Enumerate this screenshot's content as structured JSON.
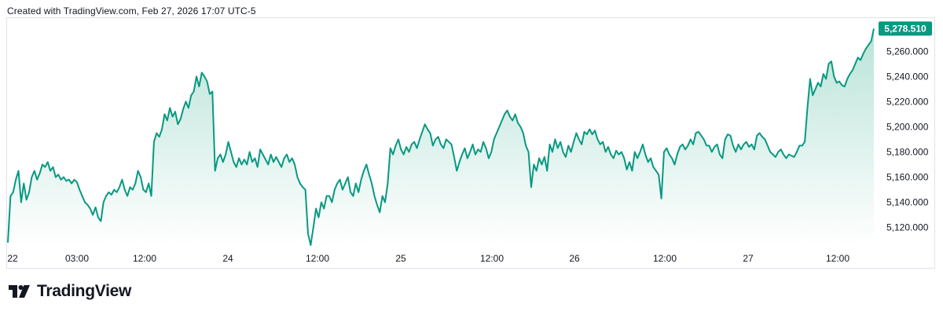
{
  "header": {
    "text": "Created with TradingView.com, Feb 27, 2026 17:07 UTC-5"
  },
  "logo": {
    "text": "TradingView",
    "icon": "tradingview-logo-icon"
  },
  "colors": {
    "line": "#089981",
    "fill_top": "#b9e3d8",
    "fill_bottom": "#ffffff",
    "last_badge": "#089981",
    "border": "#e0e3eb"
  },
  "chart_data": {
    "type": "area",
    "title": "",
    "xlabel": "",
    "ylabel": "",
    "last_value_label": "5,278.510",
    "x_tick_labels": [
      "22",
      "03:00",
      "12:00",
      "24",
      "12:00",
      "25",
      "12:00",
      "26",
      "12:00",
      "27",
      "12:00"
    ],
    "y_tick_labels": [
      "5,120.000",
      "5,140.000",
      "5,160.000",
      "5,180.000",
      "5,200.000",
      "5,220.000",
      "5,240.000",
      "5,260.000"
    ],
    "ylim": [
      5106,
      5282
    ],
    "grid": false,
    "values": [
      5108,
      5145,
      5148,
      5158,
      5165,
      5140,
      5155,
      5142,
      5148,
      5160,
      5165,
      5158,
      5163,
      5170,
      5168,
      5172,
      5165,
      5168,
      5160,
      5162,
      5158,
      5160,
      5157,
      5158,
      5155,
      5158,
      5156,
      5150,
      5145,
      5140,
      5138,
      5135,
      5130,
      5136,
      5128,
      5125,
      5140,
      5145,
      5148,
      5146,
      5150,
      5148,
      5152,
      5158,
      5150,
      5145,
      5152,
      5150,
      5155,
      5165,
      5160,
      5150,
      5148,
      5155,
      5145,
      5188,
      5195,
      5192,
      5198,
      5210,
      5205,
      5215,
      5208,
      5212,
      5202,
      5206,
      5214,
      5220,
      5215,
      5225,
      5228,
      5240,
      5232,
      5243,
      5240,
      5236,
      5226,
      5228,
      5165,
      5175,
      5178,
      5172,
      5178,
      5188,
      5180,
      5172,
      5168,
      5175,
      5170,
      5174,
      5170,
      5180,
      5172,
      5175,
      5168,
      5182,
      5178,
      5174,
      5170,
      5178,
      5172,
      5176,
      5172,
      5168,
      5175,
      5178,
      5172,
      5175,
      5170,
      5160,
      5155,
      5152,
      5150,
      5115,
      5106,
      5120,
      5135,
      5128,
      5140,
      5135,
      5145,
      5145,
      5140,
      5150,
      5155,
      5158,
      5150,
      5155,
      5160,
      5148,
      5145,
      5155,
      5148,
      5158,
      5165,
      5170,
      5162,
      5155,
      5145,
      5138,
      5132,
      5145,
      5140,
      5155,
      5183,
      5178,
      5185,
      5190,
      5182,
      5178,
      5184,
      5180,
      5186,
      5188,
      5183,
      5190,
      5196,
      5202,
      5198,
      5195,
      5185,
      5190,
      5192,
      5186,
      5183,
      5190,
      5188,
      5186,
      5176,
      5165,
      5172,
      5178,
      5183,
      5175,
      5180,
      5186,
      5178,
      5182,
      5180,
      5188,
      5183,
      5175,
      5180,
      5190,
      5195,
      5200,
      5205,
      5210,
      5213,
      5208,
      5205,
      5210,
      5203,
      5200,
      5195,
      5185,
      5180,
      5152,
      5170,
      5165,
      5175,
      5170,
      5176,
      5165,
      5186,
      5180,
      5190,
      5183,
      5188,
      5180,
      5176,
      5185,
      5180,
      5188,
      5195,
      5190,
      5186,
      5196,
      5194,
      5198,
      5194,
      5197,
      5190,
      5186,
      5188,
      5180,
      5184,
      5178,
      5175,
      5181,
      5178,
      5180,
      5175,
      5166,
      5172,
      5165,
      5180,
      5175,
      5180,
      5186,
      5178,
      5172,
      5175,
      5168,
      5165,
      5162,
      5143,
      5180,
      5183,
      5178,
      5175,
      5170,
      5178,
      5184,
      5186,
      5182,
      5185,
      5190,
      5186,
      5195,
      5196,
      5193,
      5190,
      5185,
      5185,
      5180,
      5184,
      5186,
      5178,
      5175,
      5190,
      5194,
      5193,
      5185,
      5180,
      5186,
      5182,
      5186,
      5188,
      5184,
      5186,
      5182,
      5193,
      5195,
      5192,
      5190,
      5185,
      5180,
      5178,
      5176,
      5180,
      5182,
      5178,
      5175,
      5178,
      5177,
      5176,
      5180,
      5185,
      5185,
      5188,
      5215,
      5238,
      5225,
      5230,
      5235,
      5232,
      5242,
      5238,
      5250,
      5252,
      5240,
      5235,
      5236,
      5233,
      5232,
      5238,
      5242,
      5245,
      5250,
      5255,
      5253,
      5258,
      5262,
      5265,
      5268,
      5278
    ]
  }
}
